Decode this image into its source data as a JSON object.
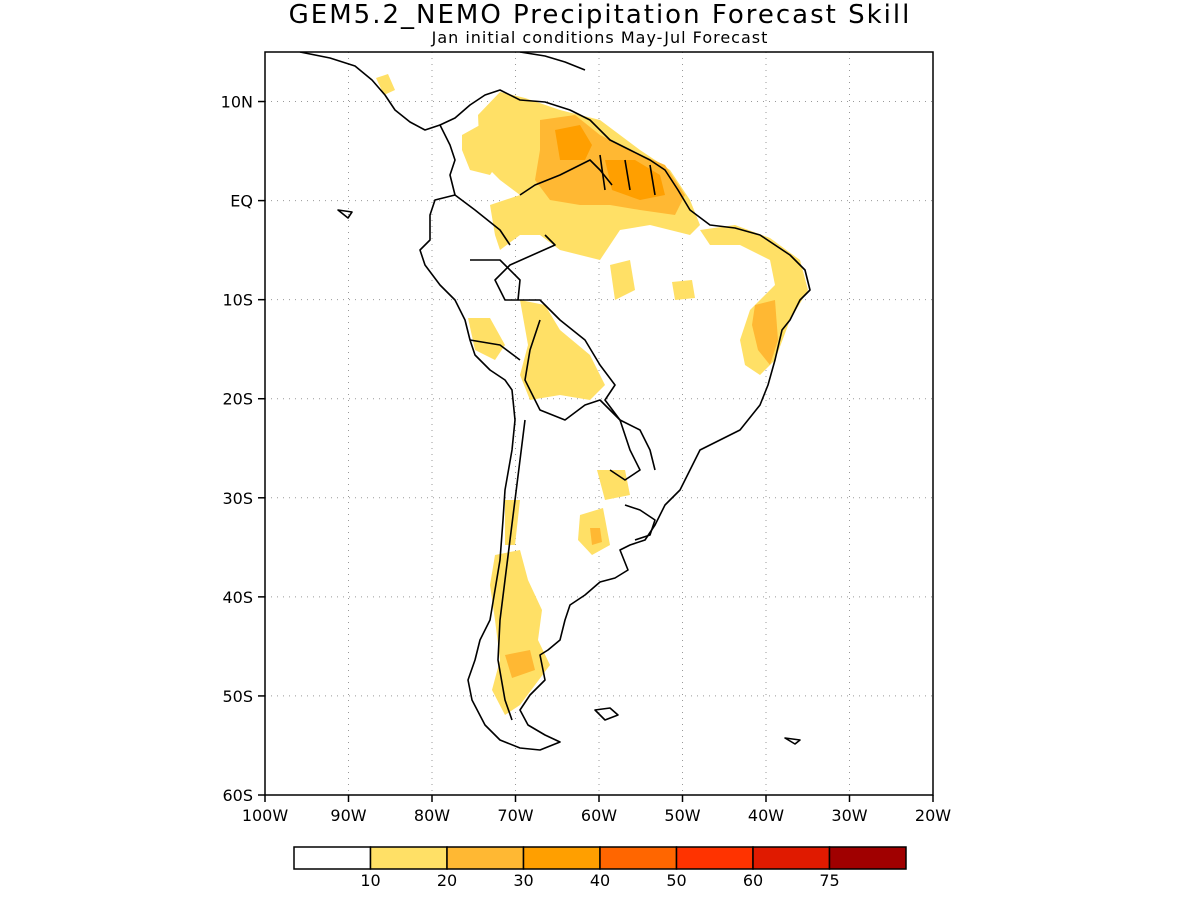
{
  "title": "GEM5.2_NEMO Precipitation Forecast Skill",
  "subtitle": "Jan initial conditions  May-Jul Forecast",
  "map": {
    "lon_range": [
      -100,
      -20
    ],
    "lat_range": [
      -60,
      15
    ],
    "gridlines": true,
    "lat_ticks": [
      {
        "value": 10,
        "label": "10N"
      },
      {
        "value": 0,
        "label": "EQ"
      },
      {
        "value": -10,
        "label": "10S"
      },
      {
        "value": -20,
        "label": "20S"
      },
      {
        "value": -30,
        "label": "30S"
      },
      {
        "value": -40,
        "label": "40S"
      },
      {
        "value": -50,
        "label": "50S"
      },
      {
        "value": -60,
        "label": "60S"
      }
    ],
    "lon_ticks": [
      {
        "value": -100,
        "label": "100W"
      },
      {
        "value": -90,
        "label": "90W"
      },
      {
        "value": -80,
        "label": "80W"
      },
      {
        "value": -70,
        "label": "70W"
      },
      {
        "value": -60,
        "label": "60W"
      },
      {
        "value": -50,
        "label": "50W"
      },
      {
        "value": -40,
        "label": "40W"
      },
      {
        "value": -30,
        "label": "30W"
      },
      {
        "value": -20,
        "label": "20W"
      }
    ],
    "skill_regions": [
      {
        "name": "northern-amazon-guiana",
        "level": 2,
        "color": "#ffb833"
      },
      {
        "name": "guiana-core",
        "level": 3,
        "color": "#ff9f00"
      },
      {
        "name": "northeast-brazil",
        "level": 2,
        "color": "#ffb833"
      },
      {
        "name": "bolivia-peru",
        "level": 1,
        "color": "#ffe066"
      },
      {
        "name": "patagonia",
        "level": 1,
        "color": "#ffe066"
      },
      {
        "name": "central-argentina",
        "level": 1,
        "color": "#ffe066"
      }
    ]
  },
  "colorbar": {
    "colors": [
      "#ffffff",
      "#ffe066",
      "#ffb833",
      "#ff9f00",
      "#ff6600",
      "#ff3300",
      "#e01a00",
      "#a00000"
    ],
    "labels": [
      "10",
      "20",
      "30",
      "40",
      "50",
      "60",
      "75"
    ]
  }
}
